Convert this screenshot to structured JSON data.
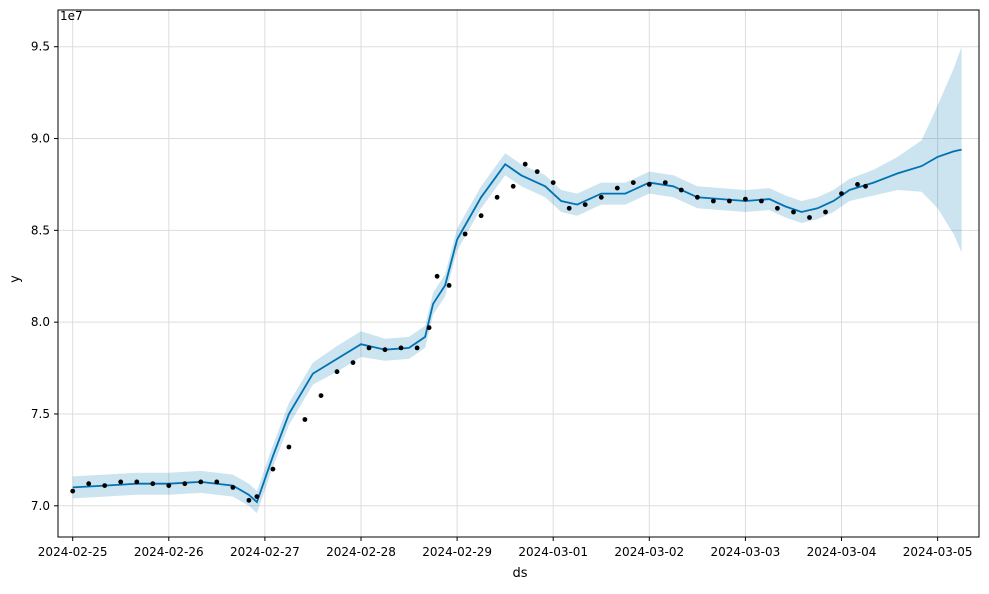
{
  "chart_data": {
    "type": "line",
    "xlabel": "ds",
    "ylabel": "y",
    "y_multiplier_label": "1e7",
    "xlim": [
      "2024-02-24T20:20:00",
      "2024-03-05T10:20:00"
    ],
    "ylim": [
      6.83,
      9.7
    ],
    "grid": true,
    "x_ticks": [
      {
        "date": "2024-02-25",
        "label": "2024-02-25"
      },
      {
        "date": "2024-02-26",
        "label": "2024-02-26"
      },
      {
        "date": "2024-02-27",
        "label": "2024-02-27"
      },
      {
        "date": "2024-02-28",
        "label": "2024-02-28"
      },
      {
        "date": "2024-02-29",
        "label": "2024-02-29"
      },
      {
        "date": "2024-03-01",
        "label": "2024-03-01"
      },
      {
        "date": "2024-03-02",
        "label": "2024-03-02"
      },
      {
        "date": "2024-03-03",
        "label": "2024-03-03"
      },
      {
        "date": "2024-03-04",
        "label": "2024-03-04"
      },
      {
        "date": "2024-03-05",
        "label": "2024-03-05"
      }
    ],
    "y_ticks": [
      {
        "value": 7.0,
        "label": "7.0"
      },
      {
        "value": 7.5,
        "label": "7.5"
      },
      {
        "value": 8.0,
        "label": "8.0"
      },
      {
        "value": 8.5,
        "label": "8.5"
      },
      {
        "value": 9.0,
        "label": "9.0"
      },
      {
        "value": 9.5,
        "label": "9.5"
      }
    ],
    "colors": {
      "forecast_line": "#0072B2",
      "interval_fill": "#0072B2",
      "observed_points": "#000000",
      "grid": "#dddddd"
    },
    "series": [
      {
        "role": "forecast",
        "x": [
          "2024-02-25T00:00",
          "2024-02-25T08:00",
          "2024-02-25T16:00",
          "2024-02-26T00:00",
          "2024-02-26T08:00",
          "2024-02-26T16:00",
          "2024-02-26T20:00",
          "2024-02-26T22:00",
          "2024-02-27T02:00",
          "2024-02-27T06:00",
          "2024-02-27T12:00",
          "2024-02-27T18:00",
          "2024-02-28T00:00",
          "2024-02-28T06:00",
          "2024-02-28T12:00",
          "2024-02-28T16:00",
          "2024-02-28T18:00",
          "2024-02-28T21:00",
          "2024-02-29T00:00",
          "2024-02-29T06:00",
          "2024-02-29T12:00",
          "2024-02-29T16:00",
          "2024-02-29T19:00",
          "2024-02-29T22:00",
          "2024-03-01T02:00",
          "2024-03-01T06:00",
          "2024-03-01T12:00",
          "2024-03-01T18:00",
          "2024-03-02T00:00",
          "2024-03-02T06:00",
          "2024-03-02T12:00",
          "2024-03-02T18:00",
          "2024-03-03T00:00",
          "2024-03-03T06:00",
          "2024-03-03T10:00",
          "2024-03-03T14:00",
          "2024-03-03T18:00",
          "2024-03-03T22:00",
          "2024-03-04T02:00",
          "2024-03-04T08:00",
          "2024-03-04T14:00",
          "2024-03-04T20:00",
          "2024-03-05T00:00",
          "2024-03-05T04:00",
          "2024-03-05T06:00"
        ],
        "y": [
          7.1,
          7.11,
          7.12,
          7.12,
          7.13,
          7.11,
          7.06,
          7.02,
          7.27,
          7.5,
          7.72,
          7.8,
          7.88,
          7.85,
          7.86,
          7.92,
          8.1,
          8.2,
          8.45,
          8.68,
          8.86,
          8.8,
          8.77,
          8.74,
          8.66,
          8.64,
          8.7,
          8.7,
          8.76,
          8.74,
          8.68,
          8.67,
          8.66,
          8.67,
          8.63,
          8.6,
          8.62,
          8.66,
          8.72,
          8.76,
          8.81,
          8.85,
          8.9,
          8.93,
          8.94
        ]
      },
      {
        "role": "interval_upper",
        "x": [
          "2024-02-25T00:00",
          "2024-02-25T08:00",
          "2024-02-25T16:00",
          "2024-02-26T00:00",
          "2024-02-26T08:00",
          "2024-02-26T16:00",
          "2024-02-26T20:00",
          "2024-02-26T22:00",
          "2024-02-27T02:00",
          "2024-02-27T06:00",
          "2024-02-27T12:00",
          "2024-02-27T18:00",
          "2024-02-28T00:00",
          "2024-02-28T06:00",
          "2024-02-28T12:00",
          "2024-02-28T16:00",
          "2024-02-28T18:00",
          "2024-02-28T21:00",
          "2024-02-29T00:00",
          "2024-02-29T06:00",
          "2024-02-29T12:00",
          "2024-02-29T16:00",
          "2024-02-29T19:00",
          "2024-02-29T22:00",
          "2024-03-01T02:00",
          "2024-03-01T06:00",
          "2024-03-01T12:00",
          "2024-03-01T18:00",
          "2024-03-02T00:00",
          "2024-03-02T06:00",
          "2024-03-02T12:00",
          "2024-03-02T18:00",
          "2024-03-03T00:00",
          "2024-03-03T06:00",
          "2024-03-03T10:00",
          "2024-03-03T14:00",
          "2024-03-03T18:00",
          "2024-03-03T22:00",
          "2024-03-04T02:00",
          "2024-03-04T08:00",
          "2024-03-04T14:00",
          "2024-03-04T20:00",
          "2024-03-05T00:00",
          "2024-03-05T04:00",
          "2024-03-05T06:00"
        ],
        "y": [
          7.16,
          7.17,
          7.18,
          7.18,
          7.19,
          7.17,
          7.12,
          7.08,
          7.33,
          7.56,
          7.78,
          7.87,
          7.95,
          7.91,
          7.92,
          7.98,
          8.16,
          8.26,
          8.51,
          8.74,
          8.92,
          8.86,
          8.83,
          8.8,
          8.72,
          8.7,
          8.76,
          8.76,
          8.82,
          8.8,
          8.74,
          8.73,
          8.72,
          8.73,
          8.69,
          8.66,
          8.68,
          8.72,
          8.78,
          8.83,
          8.9,
          8.99,
          9.18,
          9.38,
          9.5
        ]
      },
      {
        "role": "interval_lower",
        "x": [
          "2024-02-25T00:00",
          "2024-02-25T08:00",
          "2024-02-25T16:00",
          "2024-02-26T00:00",
          "2024-02-26T08:00",
          "2024-02-26T16:00",
          "2024-02-26T20:00",
          "2024-02-26T22:00",
          "2024-02-27T02:00",
          "2024-02-27T06:00",
          "2024-02-27T12:00",
          "2024-02-27T18:00",
          "2024-02-28T00:00",
          "2024-02-28T06:00",
          "2024-02-28T12:00",
          "2024-02-28T16:00",
          "2024-02-28T18:00",
          "2024-02-28T21:00",
          "2024-02-29T00:00",
          "2024-02-29T06:00",
          "2024-02-29T12:00",
          "2024-02-29T16:00",
          "2024-02-29T19:00",
          "2024-02-29T22:00",
          "2024-03-01T02:00",
          "2024-03-01T06:00",
          "2024-03-01T12:00",
          "2024-03-01T18:00",
          "2024-03-02T00:00",
          "2024-03-02T06:00",
          "2024-03-02T12:00",
          "2024-03-02T18:00",
          "2024-03-03T00:00",
          "2024-03-03T06:00",
          "2024-03-03T10:00",
          "2024-03-03T14:00",
          "2024-03-03T18:00",
          "2024-03-03T22:00",
          "2024-03-04T02:00",
          "2024-03-04T08:00",
          "2024-03-04T14:00",
          "2024-03-04T20:00",
          "2024-03-05T00:00",
          "2024-03-05T04:00",
          "2024-03-05T06:00"
        ],
        "y": [
          7.04,
          7.05,
          7.06,
          7.06,
          7.07,
          7.05,
          7.0,
          6.96,
          7.21,
          7.44,
          7.66,
          7.73,
          7.81,
          7.79,
          7.8,
          7.86,
          8.04,
          8.14,
          8.39,
          8.62,
          8.8,
          8.74,
          8.71,
          8.68,
          8.6,
          8.58,
          8.64,
          8.64,
          8.7,
          8.68,
          8.62,
          8.61,
          8.6,
          8.61,
          8.57,
          8.54,
          8.56,
          8.6,
          8.66,
          8.69,
          8.72,
          8.71,
          8.62,
          8.48,
          8.38
        ]
      },
      {
        "role": "observed",
        "x": [
          "2024-02-25T00:00",
          "2024-02-25T04:00",
          "2024-02-25T08:00",
          "2024-02-25T12:00",
          "2024-02-25T16:00",
          "2024-02-25T20:00",
          "2024-02-26T00:00",
          "2024-02-26T04:00",
          "2024-02-26T08:00",
          "2024-02-26T12:00",
          "2024-02-26T16:00",
          "2024-02-26T20:00",
          "2024-02-26T22:00",
          "2024-02-27T02:00",
          "2024-02-27T06:00",
          "2024-02-27T10:00",
          "2024-02-27T14:00",
          "2024-02-27T18:00",
          "2024-02-27T22:00",
          "2024-02-28T02:00",
          "2024-02-28T06:00",
          "2024-02-28T10:00",
          "2024-02-28T14:00",
          "2024-02-28T17:00",
          "2024-02-28T19:00",
          "2024-02-28T22:00",
          "2024-02-29T02:00",
          "2024-02-29T06:00",
          "2024-02-29T10:00",
          "2024-02-29T14:00",
          "2024-02-29T17:00",
          "2024-02-29T20:00",
          "2024-03-01T00:00",
          "2024-03-01T04:00",
          "2024-03-01T08:00",
          "2024-03-01T12:00",
          "2024-03-01T16:00",
          "2024-03-01T20:00",
          "2024-03-02T00:00",
          "2024-03-02T04:00",
          "2024-03-02T08:00",
          "2024-03-02T12:00",
          "2024-03-02T16:00",
          "2024-03-02T20:00",
          "2024-03-03T00:00",
          "2024-03-03T04:00",
          "2024-03-03T08:00",
          "2024-03-03T12:00",
          "2024-03-03T16:00",
          "2024-03-03T20:00",
          "2024-03-04T00:00",
          "2024-03-04T04:00",
          "2024-03-04T06:00"
        ],
        "y": [
          7.08,
          7.12,
          7.11,
          7.13,
          7.13,
          7.12,
          7.11,
          7.12,
          7.13,
          7.13,
          7.1,
          7.03,
          7.05,
          7.2,
          7.32,
          7.47,
          7.6,
          7.73,
          7.78,
          7.86,
          7.85,
          7.86,
          7.86,
          7.97,
          8.25,
          8.2,
          8.48,
          8.58,
          8.68,
          8.74,
          8.86,
          8.82,
          8.76,
          8.62,
          8.64,
          8.68,
          8.73,
          8.76,
          8.75,
          8.76,
          8.72,
          8.68,
          8.66,
          8.66,
          8.67,
          8.66,
          8.62,
          8.6,
          8.57,
          8.6,
          8.7,
          8.75,
          8.74
        ]
      }
    ]
  }
}
